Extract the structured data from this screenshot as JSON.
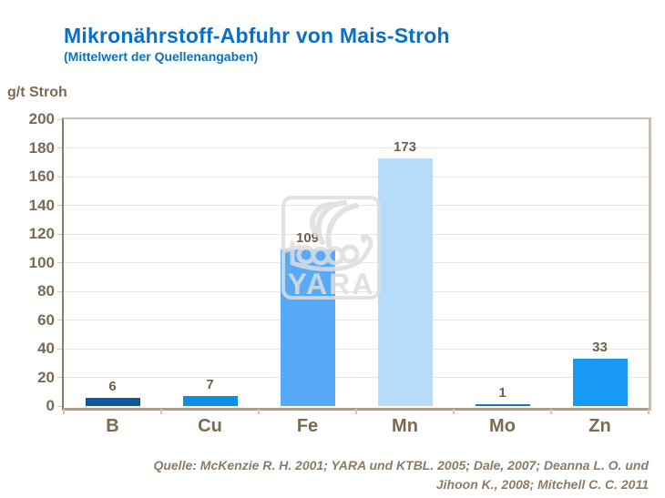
{
  "header": {
    "title": "Mikronährstoff-Abfuhr von Mais-Stroh",
    "subtitle": "(Mittelwert der Quellenangaben)"
  },
  "chart_data": {
    "type": "bar",
    "title": "Mikronährstoff-Abfuhr von Mais-Stroh",
    "subtitle": "(Mittelwert der Quellenangaben)",
    "ylabel": "g/t Stroh",
    "xlabel": "",
    "categories": [
      "B",
      "Cu",
      "Fe",
      "Mn",
      "Mo",
      "Zn"
    ],
    "values": [
      6,
      7,
      109,
      173,
      1,
      33
    ],
    "bar_colors": [
      "#0e5a9e",
      "#0a8fe4",
      "#56aaf8",
      "#b7dcfb",
      "#1573c4",
      "#189af4"
    ],
    "ylim": [
      0,
      200
    ],
    "ytick_step": 20,
    "grid": true,
    "legend": false,
    "data_labels": true
  },
  "watermark": {
    "text": "YARA"
  },
  "source": {
    "line1": "Quelle: McKenzie R. H. 2001; YARA und KTBL. 2005; Dale, 2007; Deanna L. O. und",
    "line2": "Jihoon K.,  2008; Mitchell C. C. 2011"
  },
  "colors": {
    "background": "#ffffff",
    "title_blue": "#0a70c4",
    "axis_brown": "#7b6a52",
    "label_brown": "#6f5f4b",
    "source_brown": "#8c7b66",
    "gridline": "#e9e7e3",
    "tick": "#cfc5ba",
    "border_tan": "#c9bfb5",
    "baseline_tan": "#ab9d8c",
    "axis_dark": "#8c7c66",
    "watermark_gray": "#dedede"
  }
}
